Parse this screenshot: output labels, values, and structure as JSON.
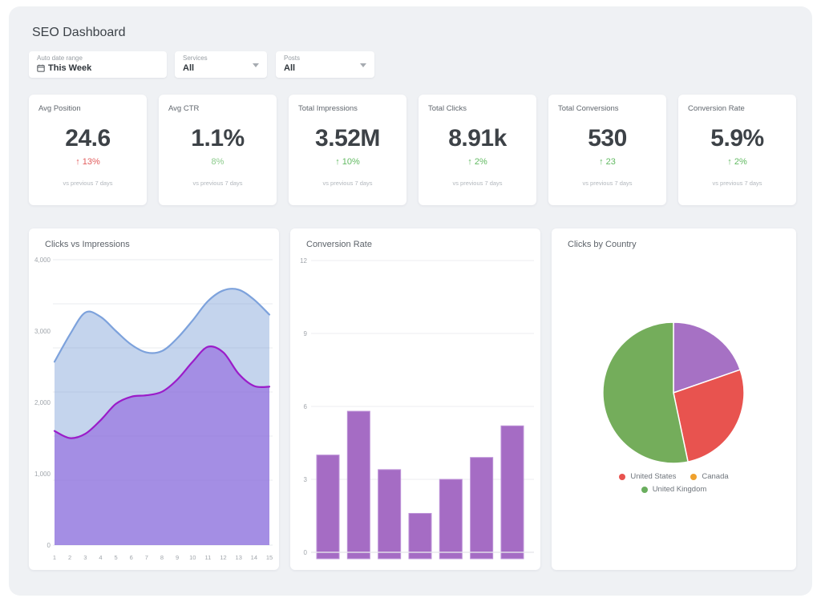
{
  "page": {
    "title": "SEO Dashboard"
  },
  "filters": [
    {
      "label": "Auto date range",
      "value": "This Week",
      "icon": "calendar-icon"
    },
    {
      "label": "Services",
      "value": "All",
      "icon": "chevron-down-icon"
    },
    {
      "label": "Posts",
      "value": "All",
      "icon": "chevron-down-icon"
    }
  ],
  "kpis": [
    {
      "label": "Avg Position",
      "value": "24.6",
      "delta": "↑ 13%",
      "delta_color": "#e25d5d",
      "note": "vs previous 7 days"
    },
    {
      "label": "Avg CTR",
      "value": "1.1%",
      "delta": "8%",
      "delta_color": "#8ccb8c",
      "note": "vs previous 7 days"
    },
    {
      "label": "Total Impressions",
      "value": "3.52M",
      "delta": "↑ 10%",
      "delta_color": "#62ba62",
      "note": "vs previous 7 days"
    },
    {
      "label": "Total Clicks",
      "value": "8.91k",
      "delta": "↑ 2%",
      "delta_color": "#62ba62",
      "note": "vs previous 7 days"
    },
    {
      "label": "Total Conversions",
      "value": "530",
      "delta": "↑ 23",
      "delta_color": "#62ba62",
      "note": "vs previous 7 days"
    },
    {
      "label": "Conversion Rate",
      "value": "5.9%",
      "delta": "↑ 2%",
      "delta_color": "#62ba62",
      "note": "vs previous 7 days"
    }
  ],
  "chart_data": [
    {
      "type": "area",
      "title": "Clicks vs Impressions",
      "x": [
        1,
        2,
        3,
        4,
        5,
        6,
        7,
        8,
        9,
        10,
        11,
        12,
        13,
        14,
        15
      ],
      "series": [
        {
          "name": "Impressions",
          "line_color": "#7da2dc",
          "fill_color": "rgba(125,160,216,0.45)",
          "values": [
            2570,
            2950,
            3260,
            3200,
            3000,
            2810,
            2700,
            2720,
            2900,
            3150,
            3420,
            3570,
            3580,
            3440,
            3230
          ]
        },
        {
          "name": "Clicks",
          "line_color": "#9b1cc9",
          "fill_color": "rgba(143,95,222,0.60)",
          "values": [
            1600,
            1500,
            1560,
            1750,
            1980,
            2080,
            2100,
            2150,
            2320,
            2570,
            2780,
            2700,
            2400,
            2230,
            2220
          ]
        }
      ],
      "ylim": [
        0,
        4000
      ],
      "ytick_values": [
        4000,
        3000,
        2000,
        1000,
        0
      ],
      "ytick_labels": [
        "4,000",
        "3,000",
        "2,000",
        "1,000",
        "0"
      ],
      "grid": true,
      "legend_position": "none"
    },
    {
      "type": "bar",
      "title": "Conversion Rate",
      "values": [
        4.0,
        5.8,
        3.4,
        1.6,
        3.0,
        3.9,
        5.2
      ],
      "bar_color": "#a56cc4",
      "bar_edge_color": "#bd92d8",
      "ylim": [
        0,
        12
      ],
      "ytick_values": [
        12,
        9,
        6,
        3,
        0
      ],
      "ytick_labels": [
        "12",
        "9",
        "6",
        "3",
        "0"
      ],
      "grid": true,
      "legend_position": "none"
    },
    {
      "type": "pie",
      "title": "Clicks by Country",
      "slices": [
        {
          "label": "",
          "color": "#a671c4",
          "pct": 19.7
        },
        {
          "label": "United States",
          "color": "#e8534f",
          "pct": 27.0
        },
        {
          "label": "United Kingdom",
          "color": "#74ad5b",
          "pct": 53.3
        }
      ],
      "legend": [
        {
          "label": "United States",
          "color": "#e8534f"
        },
        {
          "label": "Canada",
          "color": "#efa12d"
        },
        {
          "label": "United Kingdom",
          "color": "#6aae5e"
        }
      ],
      "legend_position": "bottom"
    }
  ]
}
